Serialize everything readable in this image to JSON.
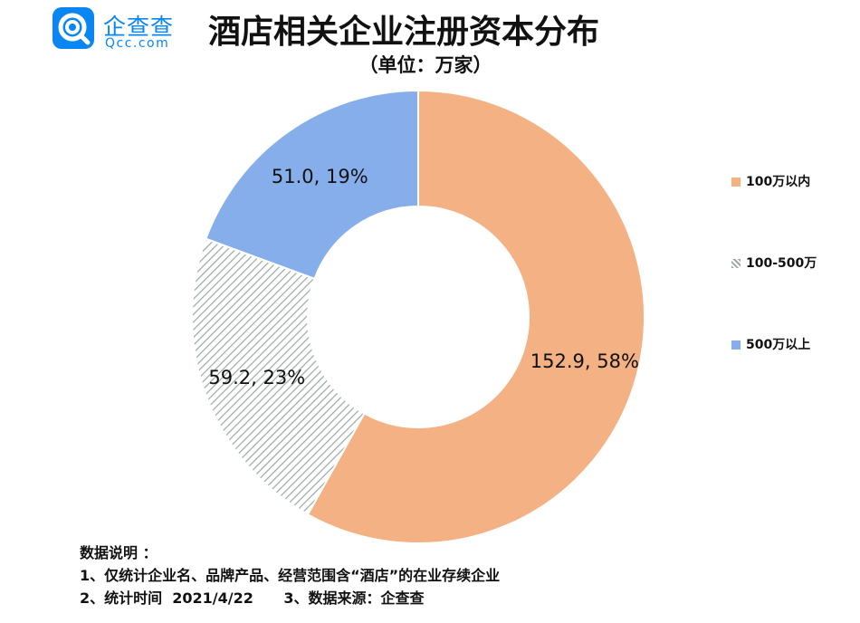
{
  "logo": {
    "name_cn": "企查查",
    "name_en": "Qcc.com"
  },
  "colors": {
    "brand": "#0a86f3",
    "slice_small": "#f3b184",
    "slice_mid": "#a8b8b0",
    "slice_large": "#86aeea"
  },
  "chart_data": {
    "type": "pie",
    "donut": true,
    "title": "酒店相关企业注册资本分布",
    "subtitle": "（单位：万家）",
    "legend_position": "right",
    "slices": [
      {
        "name": "100万以内",
        "value": 152.9,
        "percent": 58,
        "label": "152.9, 58%",
        "color": "#f3b184",
        "pattern": "solid"
      },
      {
        "name": "100-500万",
        "value": 59.2,
        "percent": 23,
        "label": "59.2, 23%",
        "color": "#a8b8b0",
        "pattern": "diagonal-hatch"
      },
      {
        "name": "500万以上",
        "value": 51.0,
        "percent": 19,
        "label": "51.0, 19%",
        "color": "#86aeea",
        "pattern": "solid"
      }
    ]
  },
  "notes": {
    "heading": "数据说明 ：",
    "line1": "1、仅统计企业名、品牌产品、经营范围含“酒店”的在业存续企业",
    "line2": "2、统计时间  2021/4/22      3、数据来源：企查查"
  }
}
